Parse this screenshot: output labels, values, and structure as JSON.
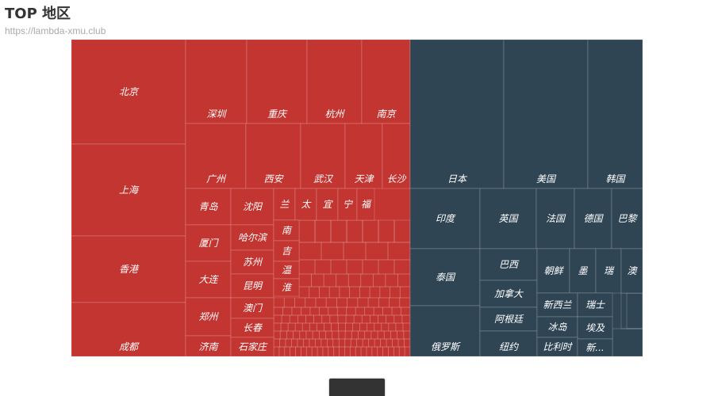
{
  "header": {
    "title": "TOP 地区",
    "subtitle": "https://lambda-xmu.club"
  },
  "colors": {
    "domestic": "#c23531",
    "international": "#2f4554",
    "border": "rgba(255,255,255,0.18)",
    "label": "#ffffff",
    "bottom_bar": "#333333"
  },
  "chart_data": {
    "type": "treemap",
    "title": "TOP 地区",
    "groups": [
      {
        "color": "#c23531",
        "items": [
          {
            "name": "北京",
            "value": 5.8
          },
          {
            "name": "上海",
            "value": 4.6
          },
          {
            "name": "香港",
            "value": 3.3
          },
          {
            "name": "成都",
            "value": 3.0
          },
          {
            "name": "深圳",
            "value": 2.5
          },
          {
            "name": "重庆",
            "value": 2.5
          },
          {
            "name": "杭州",
            "value": 2.3
          },
          {
            "name": "南京",
            "value": 2.1
          },
          {
            "name": "广州",
            "value": 2.5
          },
          {
            "name": "西安",
            "value": 2.3
          },
          {
            "name": "武汉",
            "value": 1.8
          },
          {
            "name": "天津",
            "value": 1.5
          },
          {
            "name": "长沙",
            "value": 1.1
          },
          {
            "name": "青岛",
            "value": 0.8
          },
          {
            "name": "厦门",
            "value": 0.8
          },
          {
            "name": "大连",
            "value": 0.8
          },
          {
            "name": "郑州",
            "value": 0.7
          },
          {
            "name": "济南",
            "value": 0.7
          },
          {
            "name": "沈阳",
            "value": 0.6
          },
          {
            "name": "哈尔滨",
            "value": 0.6
          },
          {
            "name": "苏州",
            "value": 0.6
          },
          {
            "name": "昆明",
            "value": 0.5
          },
          {
            "name": "澳门",
            "value": 0.5
          },
          {
            "name": "长春",
            "value": 0.5
          },
          {
            "name": "石家庄",
            "value": 0.5
          },
          {
            "name": "兰",
            "value": 0.25
          },
          {
            "name": "太",
            "value": 0.25
          },
          {
            "name": "宜",
            "value": 0.25
          },
          {
            "name": "宁",
            "value": 0.25
          },
          {
            "name": "福",
            "value": 0.25
          },
          {
            "name": "南",
            "value": 0.25
          },
          {
            "name": "吉",
            "value": 0.25
          },
          {
            "name": "温",
            "value": 0.25
          },
          {
            "name": "淮",
            "value": 0.25
          }
        ]
      },
      {
        "color": "#2f4554",
        "items": [
          {
            "name": "日本",
            "value": 4.0
          },
          {
            "name": "美国",
            "value": 3.6
          },
          {
            "name": "韩国",
            "value": 1.8
          },
          {
            "name": "印度",
            "value": 1.8
          },
          {
            "name": "英国",
            "value": 1.4
          },
          {
            "name": "法国",
            "value": 1.0
          },
          {
            "name": "德国",
            "value": 1.0
          },
          {
            "name": "巴黎",
            "value": 0.8
          },
          {
            "name": "泰国",
            "value": 1.6
          },
          {
            "name": "俄罗斯",
            "value": 1.4
          },
          {
            "name": "巴西",
            "value": 0.6
          },
          {
            "name": "加拿大",
            "value": 0.6
          },
          {
            "name": "阿根廷",
            "value": 0.6
          },
          {
            "name": "纽约",
            "value": 0.5
          },
          {
            "name": "朝鲜",
            "value": 0.6
          },
          {
            "name": "墨",
            "value": 0.45
          },
          {
            "name": "瑞",
            "value": 0.35
          },
          {
            "name": "澳",
            "value": 0.3
          },
          {
            "name": "新西兰",
            "value": 0.4
          },
          {
            "name": "瑞士",
            "value": 0.35
          },
          {
            "name": "冰岛",
            "value": 0.4
          },
          {
            "name": "埃及",
            "value": 0.35
          },
          {
            "name": "比利时",
            "value": 0.4
          },
          {
            "name": "新...",
            "value": 0.3
          }
        ]
      }
    ]
  }
}
